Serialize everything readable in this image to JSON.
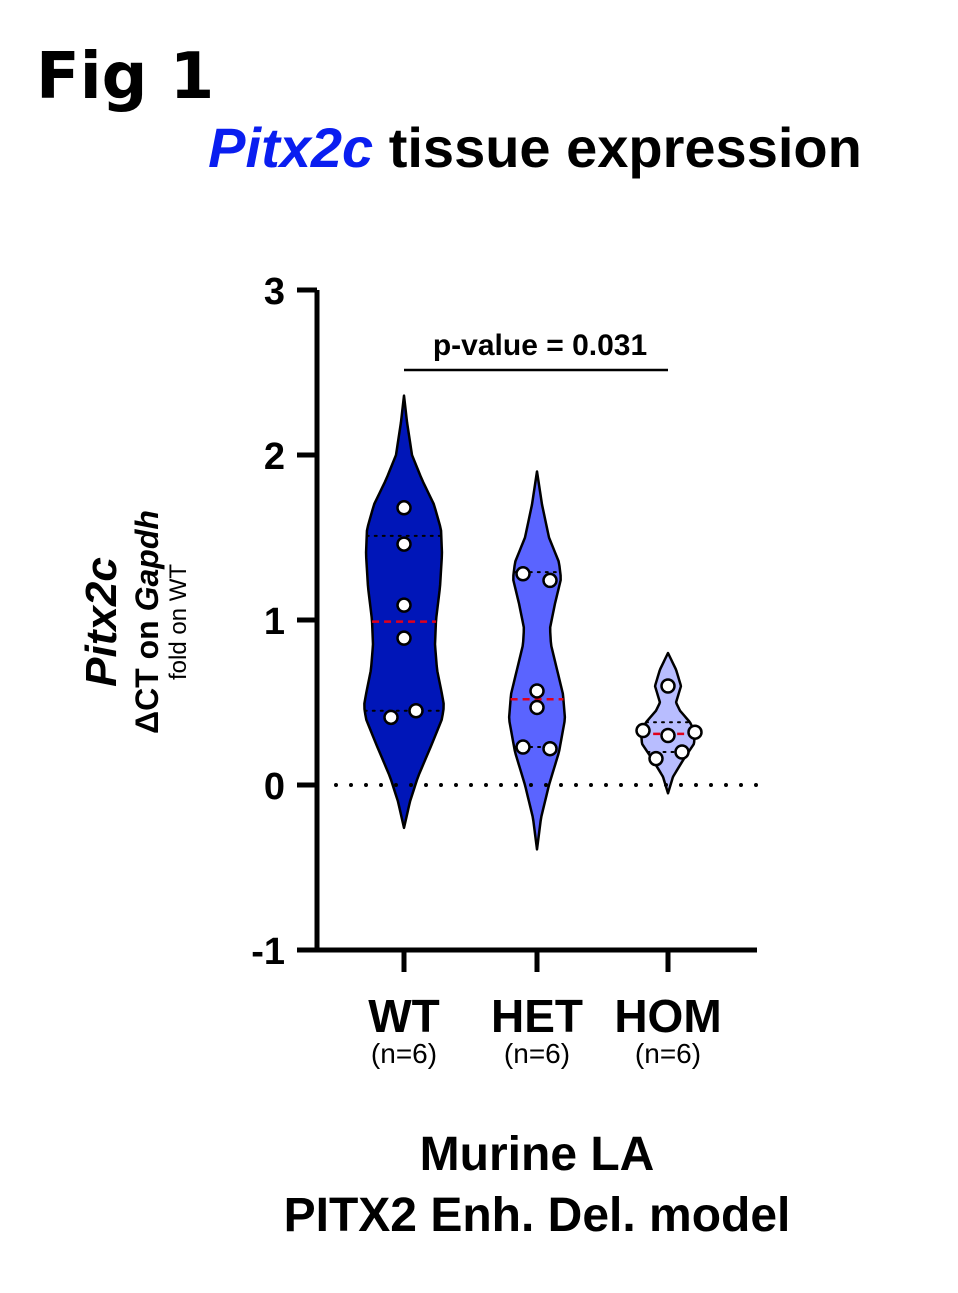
{
  "figure_label": "Fig 1",
  "chart_data": {
    "type": "violin",
    "title_gene": "Pitx2c",
    "title_rest": " tissue expression",
    "ylabel_gene": "Pitx2c",
    "ylabel_line2_prefix": "ΔCT on ",
    "ylabel_line2_gene": "Gapdh",
    "ylabel_line3": "fold on WT",
    "xlabel_line1": "Murine LA",
    "xlabel_line2": "PITX2 Enh. Del. model",
    "ylim": [
      -1,
      3
    ],
    "yticks": [
      -1,
      0,
      1,
      2,
      3
    ],
    "ytick_labels": [
      "-1",
      "0",
      "1",
      "2",
      "3"
    ],
    "reference_line_y": 0,
    "annotation": {
      "text": "p-value = 0.031",
      "from_category": 0,
      "to_category": 2
    },
    "categories": [
      {
        "name": "WT",
        "n_label": "(n=6)",
        "color": "#0016b8",
        "median": 0.99,
        "q1": 0.45,
        "q3": 1.51,
        "points": [
          1.68,
          1.46,
          1.09,
          0.89,
          0.45,
          0.41
        ],
        "violin": [
          [
            -0.26,
            0
          ],
          [
            -0.1,
            6
          ],
          [
            0.05,
            14
          ],
          [
            0.25,
            28
          ],
          [
            0.4,
            38
          ],
          [
            0.48,
            40
          ],
          [
            0.55,
            38
          ],
          [
            0.7,
            33
          ],
          [
            0.85,
            31
          ],
          [
            1.0,
            32
          ],
          [
            1.2,
            36
          ],
          [
            1.4,
            38
          ],
          [
            1.55,
            37
          ],
          [
            1.7,
            30
          ],
          [
            1.85,
            18
          ],
          [
            2.0,
            8
          ],
          [
            2.2,
            3
          ],
          [
            2.36,
            0
          ]
        ]
      },
      {
        "name": "HET",
        "n_label": "(n=6)",
        "color": "#5a64ff",
        "median": 0.52,
        "q1": 0.23,
        "q3": 1.29,
        "points": [
          1.28,
          1.24,
          0.57,
          0.47,
          0.23,
          0.22
        ],
        "violin": [
          [
            -0.39,
            0
          ],
          [
            -0.2,
            4
          ],
          [
            0.0,
            12
          ],
          [
            0.2,
            22
          ],
          [
            0.4,
            28
          ],
          [
            0.55,
            26
          ],
          [
            0.7,
            20
          ],
          [
            0.85,
            14
          ],
          [
            0.95,
            13
          ],
          [
            1.1,
            18
          ],
          [
            1.25,
            24
          ],
          [
            1.35,
            22
          ],
          [
            1.5,
            12
          ],
          [
            1.7,
            5
          ],
          [
            1.9,
            0
          ]
        ]
      },
      {
        "name": "HOM",
        "n_label": "(n=6)",
        "color": "#b8bdff",
        "median": 0.31,
        "q1": 0.2,
        "q3": 0.38,
        "points": [
          0.6,
          0.33,
          0.32,
          0.3,
          0.2,
          0.16
        ],
        "violin": [
          [
            -0.05,
            0
          ],
          [
            0.05,
            5
          ],
          [
            0.15,
            15
          ],
          [
            0.25,
            26
          ],
          [
            0.32,
            27
          ],
          [
            0.38,
            22
          ],
          [
            0.45,
            12
          ],
          [
            0.5,
            8
          ],
          [
            0.6,
            13
          ],
          [
            0.7,
            8
          ],
          [
            0.8,
            0
          ]
        ]
      }
    ]
  }
}
